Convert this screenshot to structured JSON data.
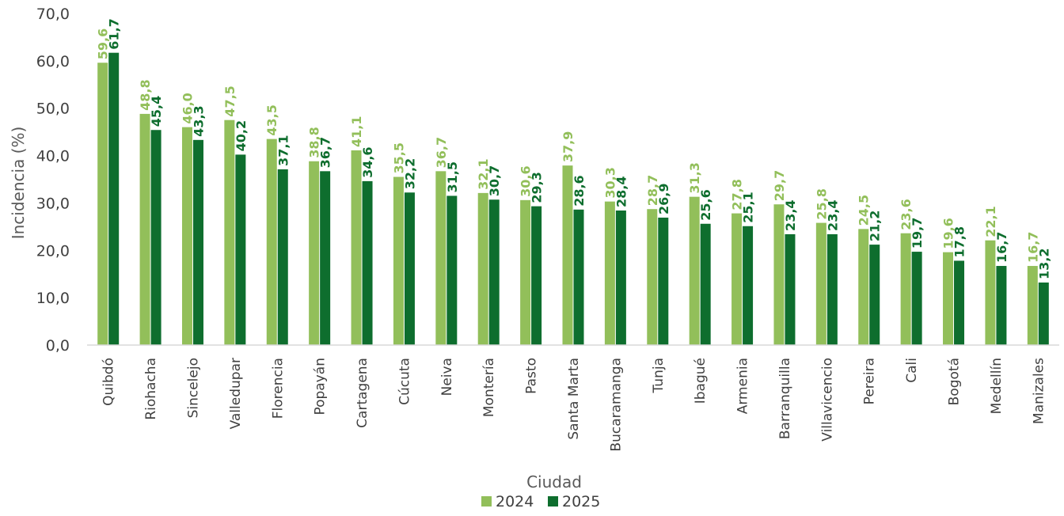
{
  "chart_data": {
    "type": "bar",
    "title": "",
    "xlabel": "Ciudad",
    "ylabel": "Incidencia  (%)",
    "ylim": [
      0,
      70
    ],
    "ytick_step": 10,
    "ytick_labels": [
      "0,0",
      "10,0",
      "20,0",
      "30,0",
      "40,0",
      "50,0",
      "60,0",
      "70,0"
    ],
    "grid": false,
    "legend_position": "bottom",
    "categories": [
      "Quibdó",
      "Riohacha",
      "Sincelejo",
      "Valledupar",
      "Florencia",
      "Popayán",
      "Cartagena",
      "Cúcuta",
      "Neiva",
      "Montería",
      "Pasto",
      "Santa Marta",
      "Bucaramanga",
      "Tunja",
      "Ibagué",
      "Armenia",
      "Barranquilla",
      "Villavicencio",
      "Pereira",
      "Cali",
      "Bogotá",
      "Medellín",
      "Manizales"
    ],
    "series": [
      {
        "name": "2024",
        "color": "#92BF5A",
        "values": [
          59.6,
          48.8,
          46.0,
          47.5,
          43.5,
          38.8,
          41.1,
          35.5,
          36.7,
          32.1,
          30.6,
          37.9,
          30.3,
          28.7,
          31.3,
          27.8,
          29.7,
          25.8,
          24.5,
          23.6,
          19.6,
          22.1,
          16.7
        ],
        "labels": [
          "59,6",
          "48,8",
          "46,0",
          "47,5",
          "43,5",
          "38,8",
          "41,1",
          "35,5",
          "36,7",
          "32,1",
          "30,6",
          "37,9",
          "30,3",
          "28,7",
          "31,3",
          "27,8",
          "29,7",
          "25,8",
          "24,5",
          "23,6",
          "19,6",
          "22,1",
          "16,7"
        ]
      },
      {
        "name": "2025",
        "color": "#0E6E2E",
        "values": [
          61.7,
          45.4,
          43.3,
          40.2,
          37.1,
          36.7,
          34.6,
          32.2,
          31.5,
          30.7,
          29.3,
          28.6,
          28.4,
          26.9,
          25.6,
          25.1,
          23.4,
          23.4,
          21.2,
          19.7,
          17.8,
          16.7,
          13.2
        ],
        "labels": [
          "61,7",
          "45,4",
          "43,3",
          "40,2",
          "37,1",
          "36,7",
          "34,6",
          "32,2",
          "31,5",
          "30,7",
          "29,3",
          "28,6",
          "28,4",
          "26,9",
          "25,6",
          "25,1",
          "23,4",
          "23,4",
          "21,2",
          "19,7",
          "17,8",
          "16,7",
          "13,2"
        ]
      }
    ]
  }
}
